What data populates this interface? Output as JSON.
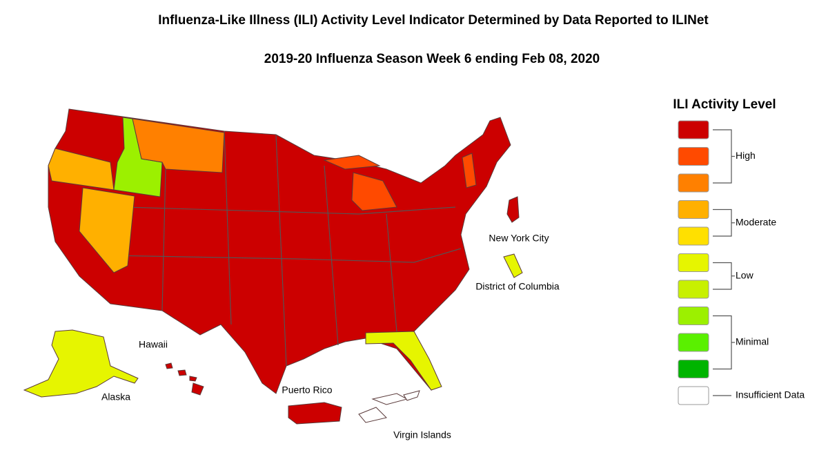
{
  "title": "Influenza-Like Illness (ILI) Activity Level Indicator Determined by Data Reported to ILINet",
  "subtitle": "2019-20 Influenza Season Week 6 ending Feb 08, 2020",
  "legend": {
    "title": "ILI Activity Level",
    "groups": [
      {
        "label": "High",
        "colors": [
          "#cc0000",
          "#ff4a00",
          "#ff8000"
        ]
      },
      {
        "label": "Moderate",
        "colors": [
          "#ffb000",
          "#ffe000"
        ]
      },
      {
        "label": "Low",
        "colors": [
          "#e6f500",
          "#c8f000"
        ]
      },
      {
        "label": "Minimal",
        "colors": [
          "#9cf000",
          "#5af000",
          "#00b400"
        ]
      },
      {
        "label": "Insufficient Data",
        "colors": [
          "#ffffff"
        ]
      }
    ]
  },
  "insets": [
    {
      "label": "Alaska",
      "color": "#e6f500"
    },
    {
      "label": "Hawaii",
      "color": "#cc0000"
    },
    {
      "label": "Puerto Rico",
      "color": "#cc0000"
    },
    {
      "label": "Virgin Islands",
      "color": "#ffffff"
    },
    {
      "label": "New York City",
      "color": "#cc0000"
    },
    {
      "label": "District of Columbia",
      "color": "#e6f500"
    }
  ]
}
